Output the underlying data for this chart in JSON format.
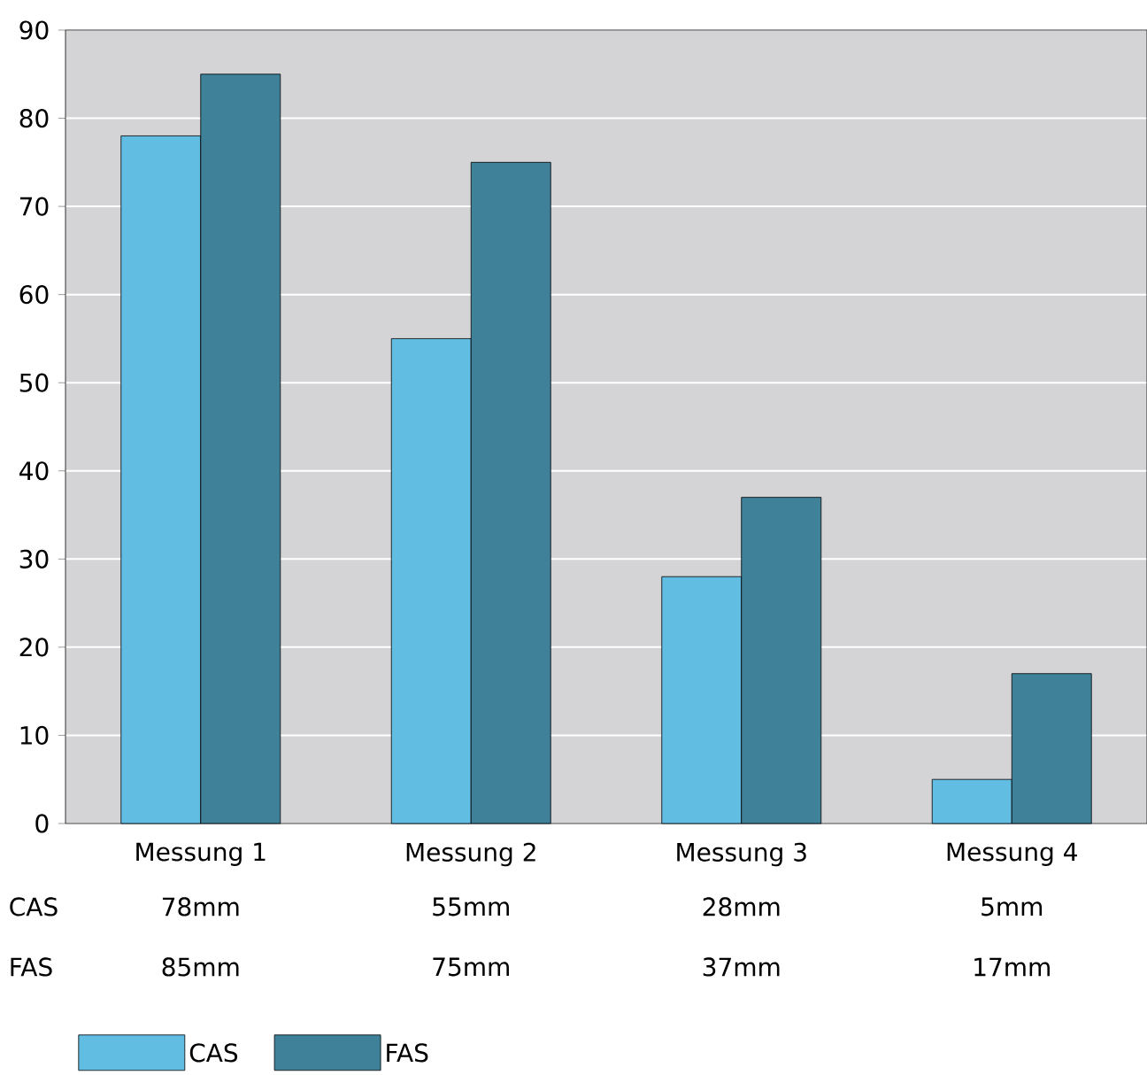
{
  "chart_data": {
    "type": "bar",
    "categories": [
      "Messung 1",
      "Messung 2",
      "Messung 3",
      "Messung 4"
    ],
    "series": [
      {
        "name": "CAS",
        "color": "#62bde3",
        "values": [
          78,
          55,
          28,
          5
        ],
        "value_labels": [
          "78mm",
          "55mm",
          "28mm",
          "5mm"
        ]
      },
      {
        "name": "FAS",
        "color": "#3f8199",
        "values": [
          85,
          75,
          37,
          17
        ],
        "value_labels": [
          "85mm",
          "75mm",
          "37mm",
          "17mm"
        ]
      }
    ],
    "ylim": [
      0,
      90
    ],
    "yticks": [
      0,
      10,
      20,
      30,
      40,
      50,
      60,
      70,
      80,
      90
    ],
    "grid": "y",
    "legend": "bottom left"
  }
}
